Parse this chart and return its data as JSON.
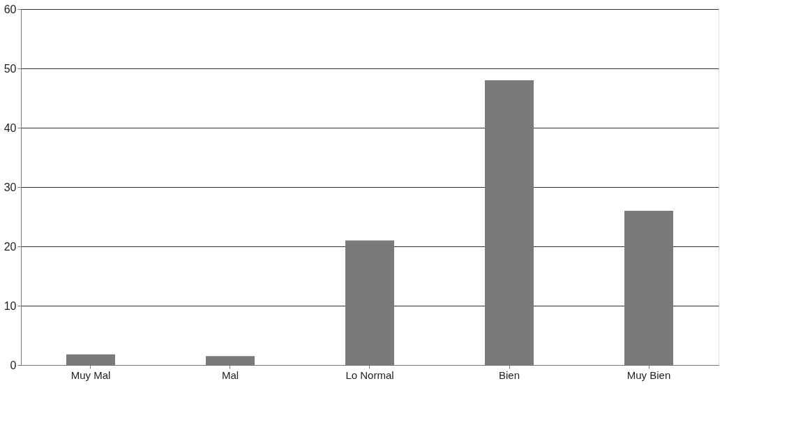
{
  "chart_data": {
    "type": "bar",
    "categories": [
      "Muy Mal",
      "Mal",
      "Lo Normal",
      "Bien",
      "Muy Bien"
    ],
    "values": [
      1.8,
      1.5,
      21,
      48,
      26
    ],
    "color": "#7a7a7a",
    "ylim": [
      0,
      60
    ],
    "yticks": [
      0,
      10,
      20,
      30,
      40,
      50,
      60
    ],
    "grid": "y"
  }
}
